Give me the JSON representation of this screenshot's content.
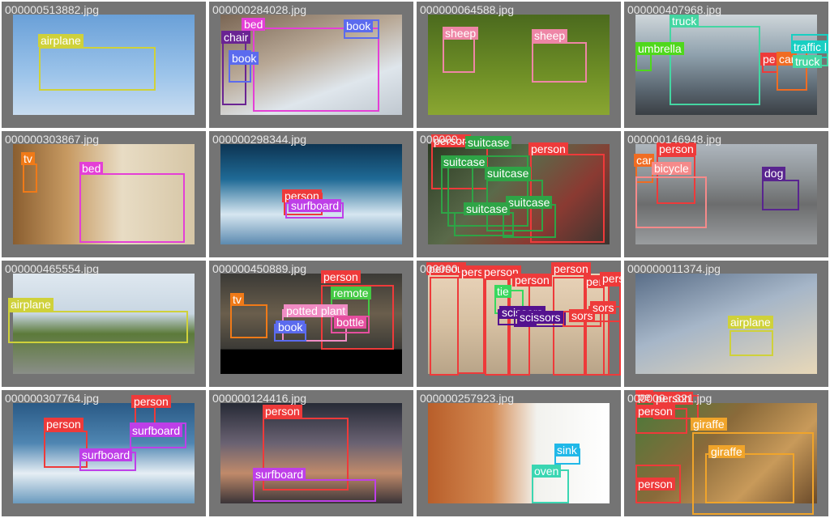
{
  "colors": {
    "airplane": "#cfd13a",
    "bed": "#e43fd6",
    "book": "#5b6bee",
    "chair": "#6a2493",
    "sheep": "#ee86a6",
    "truck": "#44d6a2",
    "umbrella": "#4fd81c",
    "person": "#ee3a3a",
    "car": "#f06c22",
    "traffic light": "#18cfc2",
    "tv": "#f07a18",
    "surfboard": "#be3fe8",
    "suitcase": "#2ea446",
    "bicycle": "#f58a8a",
    "dog": "#59258f",
    "remote": "#44c944",
    "potted plant": "#f08cc4",
    "bottle": "#e64fa0",
    "tie": "#38d85e",
    "scissors": "#54128f",
    "giraffe": "#f0a42a",
    "sink": "#20b8e8",
    "oven": "#3ad6b2"
  },
  "tiles": [
    {
      "filename": "000000513882.jpg",
      "labels": [
        "airplane"
      ]
    },
    {
      "filename": "000000284028.jpg",
      "labels": [
        "bed",
        "chair",
        "book",
        "book"
      ]
    },
    {
      "filename": "000000064588.jpg",
      "labels": [
        "sheep",
        "sheep"
      ]
    },
    {
      "filename": "000000407968.jpg",
      "labels": [
        "truck",
        "umbrella",
        "pe",
        "car",
        "traffic l",
        "truck"
      ]
    },
    {
      "filename": "000000303867.jpg",
      "labels": [
        "tv",
        "bed"
      ]
    },
    {
      "filename": "000000298344.jpg",
      "labels": [
        "person",
        "surfboard"
      ]
    },
    {
      "filename": "000000...",
      "labels": [
        "person",
        "suitcase",
        "person",
        "suitcase",
        "suitcase",
        "suitcase",
        "suitcase"
      ]
    },
    {
      "filename": "000000146948.jpg",
      "labels": [
        "person",
        "car",
        "bicycle",
        "dog"
      ]
    },
    {
      "filename": "000000465554.jpg",
      "labels": [
        "airplane"
      ]
    },
    {
      "filename": "000000450889.jpg",
      "labels": [
        "person",
        "remote",
        "tv",
        "potted plant",
        "book",
        "bottle"
      ]
    },
    {
      "filename": "000000...",
      "labels": [
        "person",
        "perso",
        "person",
        "person",
        "person",
        "per",
        "person",
        "tie",
        "scissors",
        "scissors",
        "sors",
        "sors"
      ]
    },
    {
      "filename": "000000011374.jpg",
      "labels": [
        "airplane"
      ]
    },
    {
      "filename": "000000307764.jpg",
      "labels": [
        "person",
        "person",
        "surfboard",
        "surfboard"
      ]
    },
    {
      "filename": "000000124416.jpg",
      "labels": [
        "person",
        "surfboard"
      ]
    },
    {
      "filename": "000000257923.jpg",
      "labels": [
        "sink",
        "oven"
      ]
    },
    {
      "filename": "000000...321.jpg",
      "labels": [
        "pe",
        "person",
        "person",
        "giraffe",
        "giraffe",
        "person"
      ]
    }
  ]
}
